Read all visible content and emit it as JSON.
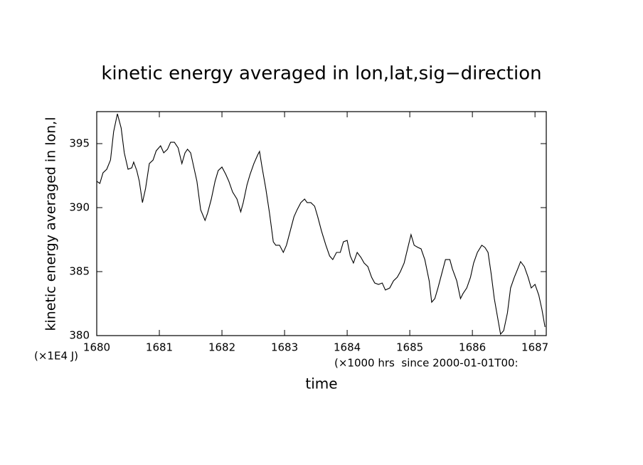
{
  "chart_data": {
    "type": "line",
    "title": "kinetic energy averaged in lon,lat,sig−direction",
    "y_label": "kinetic energy averaged in lon,l",
    "y_units": "(×1E4 J)",
    "x_label": "time",
    "x_units": "(×1000 hrs  since 2000-01-01T00:",
    "xlim": [
      1680,
      1687.18
    ],
    "xticks": [
      1680,
      1681,
      1682,
      1683,
      1684,
      1685,
      1686,
      1687
    ],
    "ylim": [
      380,
      397.5
    ],
    "yticks": [
      380,
      385,
      390,
      395
    ],
    "grid": false,
    "series": [
      {
        "color": "#000000",
        "x": [
          1680.0,
          1680.05,
          1680.1,
          1680.16,
          1680.22,
          1680.27,
          1680.33,
          1680.39,
          1680.44,
          1680.5,
          1680.56,
          1680.59,
          1680.64,
          1680.68,
          1680.73,
          1680.78,
          1680.84,
          1680.9,
          1680.95,
          1681.02,
          1681.07,
          1681.13,
          1681.18,
          1681.24,
          1681.3,
          1681.36,
          1681.41,
          1681.45,
          1681.5,
          1681.55,
          1681.6,
          1681.66,
          1681.73,
          1681.77,
          1681.83,
          1681.89,
          1681.94,
          1682.0,
          1682.06,
          1682.11,
          1682.17,
          1682.24,
          1682.3,
          1682.34,
          1682.4,
          1682.45,
          1682.51,
          1682.57,
          1682.6,
          1682.64,
          1682.7,
          1682.76,
          1682.82,
          1682.86,
          1682.92,
          1682.98,
          1683.03,
          1683.09,
          1683.15,
          1683.2,
          1683.26,
          1683.32,
          1683.36,
          1683.42,
          1683.48,
          1683.53,
          1683.59,
          1683.66,
          1683.72,
          1683.77,
          1683.83,
          1683.89,
          1683.94,
          1684.0,
          1684.05,
          1684.1,
          1684.16,
          1684.22,
          1684.27,
          1684.33,
          1684.39,
          1684.44,
          1684.5,
          1684.56,
          1684.61,
          1684.68,
          1684.74,
          1684.8,
          1684.85,
          1684.91,
          1684.97,
          1685.02,
          1685.07,
          1685.13,
          1685.18,
          1685.24,
          1685.31,
          1685.35,
          1685.4,
          1685.45,
          1685.51,
          1685.57,
          1685.64,
          1685.68,
          1685.75,
          1685.81,
          1685.85,
          1685.91,
          1685.97,
          1686.02,
          1686.08,
          1686.15,
          1686.2,
          1686.25,
          1686.3,
          1686.35,
          1686.41,
          1686.45,
          1686.5,
          1686.56,
          1686.61,
          1686.67,
          1686.73,
          1686.77,
          1686.83,
          1686.89,
          1686.94,
          1687.0,
          1687.06,
          1687.11,
          1687.16
        ],
        "values": [
          392.06,
          391.89,
          392.72,
          393.0,
          393.72,
          395.94,
          397.33,
          396.22,
          394.28,
          393.0,
          393.11,
          393.56,
          392.89,
          392.06,
          390.39,
          391.5,
          393.44,
          393.72,
          394.44,
          394.83,
          394.28,
          394.56,
          395.11,
          395.11,
          394.67,
          393.44,
          394.28,
          394.56,
          394.28,
          393.17,
          392.06,
          389.83,
          389.0,
          389.56,
          390.67,
          392.06,
          392.89,
          393.17,
          392.61,
          392.06,
          391.22,
          390.67,
          389.67,
          390.39,
          391.78,
          392.61,
          393.44,
          394.11,
          394.39,
          393.17,
          391.5,
          389.56,
          387.33,
          387.06,
          387.06,
          386.5,
          387.06,
          388.17,
          389.28,
          389.83,
          390.39,
          390.67,
          390.39,
          390.39,
          390.11,
          389.28,
          388.17,
          387.06,
          386.22,
          385.94,
          386.5,
          386.5,
          387.33,
          387.44,
          386.22,
          385.67,
          386.5,
          386.11,
          385.67,
          385.39,
          384.56,
          384.11,
          384.0,
          384.11,
          383.56,
          383.72,
          384.28,
          384.56,
          385.0,
          385.67,
          386.89,
          387.89,
          387.06,
          386.89,
          386.78,
          385.94,
          384.28,
          382.61,
          382.89,
          383.72,
          384.83,
          385.94,
          385.94,
          385.22,
          384.28,
          382.89,
          383.28,
          383.72,
          384.56,
          385.67,
          386.5,
          387.06,
          386.89,
          386.5,
          384.83,
          382.89,
          381.22,
          380.11,
          380.39,
          381.78,
          383.72,
          384.56,
          385.28,
          385.78,
          385.39,
          384.56,
          383.72,
          384.0,
          383.17,
          382.06,
          380.67
        ]
      }
    ]
  }
}
